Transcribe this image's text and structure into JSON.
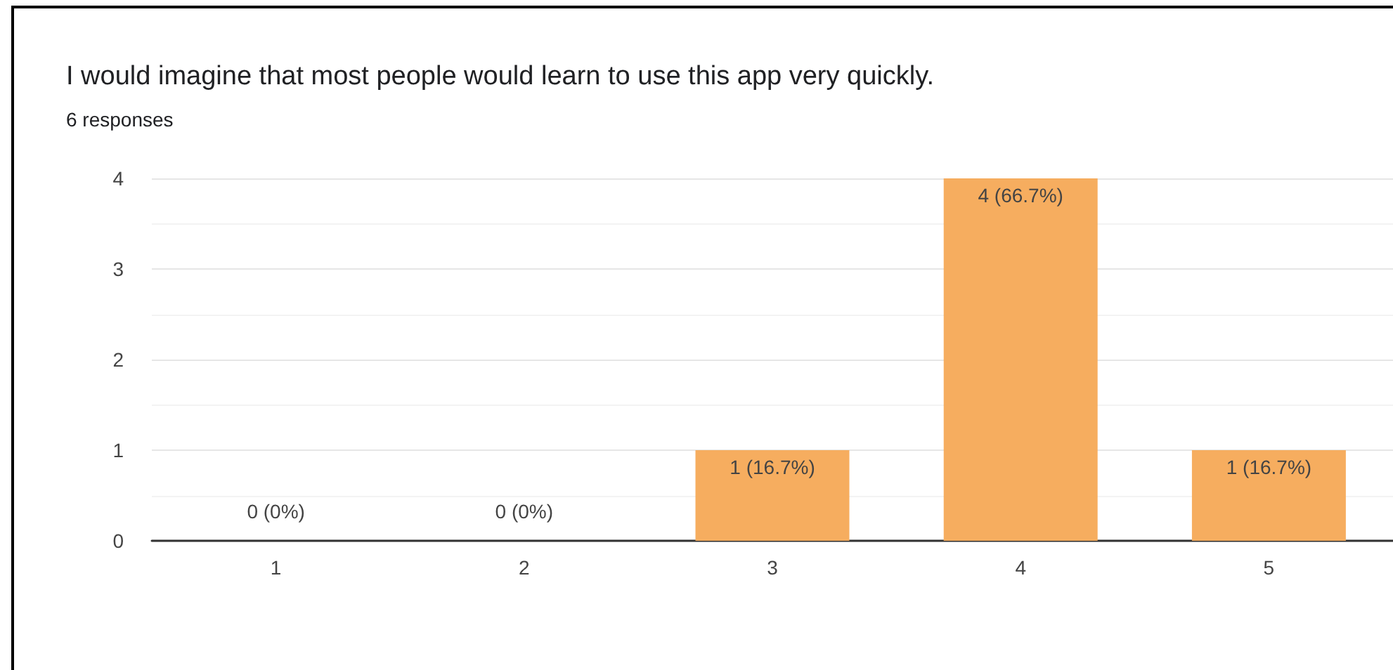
{
  "chart_data": {
    "type": "bar",
    "title": "I would imagine that most people would learn to use this app very quickly.",
    "subtitle": "6 responses",
    "categories": [
      "1",
      "2",
      "3",
      "4",
      "5"
    ],
    "values": [
      0,
      0,
      1,
      4,
      1
    ],
    "value_labels": [
      "0 (0%)",
      "0 (0%)",
      "1 (16.7%)",
      "4 (66.7%)",
      "1 (16.7%)"
    ],
    "color": "#f6ad5f",
    "ylim": [
      0,
      4
    ],
    "yticks": [
      0,
      1,
      2,
      3,
      4
    ],
    "grid": "y"
  }
}
